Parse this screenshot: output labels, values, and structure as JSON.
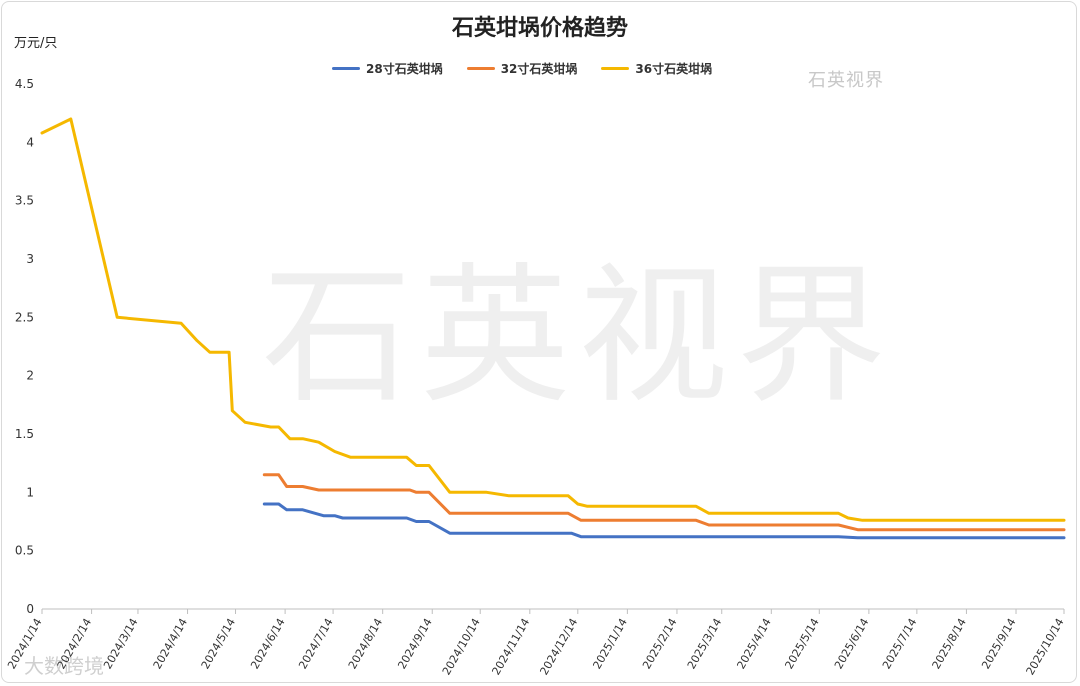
{
  "chart_data": {
    "type": "line",
    "title": "石英坩埚价格趋势",
    "ylabel": "万元/只",
    "ylim": [
      0,
      4.5
    ],
    "yticks": [
      "0",
      "0.5",
      "1",
      "1.5",
      "2",
      "2.5",
      "3",
      "3.5",
      "4",
      "4.5"
    ],
    "x_tick_labels": [
      "2024/1/14",
      "2024/2/14",
      "2024/3/14",
      "2024/4/14",
      "2024/5/14",
      "2024/6/14",
      "2024/7/14",
      "2024/8/14",
      "2024/9/14",
      "2024/10/14",
      "2024/11/14",
      "2024/12/14",
      "2025/1/14",
      "2025/2/14",
      "2025/3/14",
      "2025/4/14",
      "2025/5/14",
      "2025/6/14",
      "2025/7/14",
      "2025/8/14",
      "2025/9/14",
      "2025/10/14"
    ],
    "x_range": [
      "2024-01-14",
      "2025-10-14"
    ],
    "grid": false,
    "legend_position": "top-center",
    "series": [
      {
        "name": "28寸石英坩埚",
        "color": "#4472C4",
        "points": [
          [
            "2024-06-01",
            0.9
          ],
          [
            "2024-06-10",
            0.9
          ],
          [
            "2024-06-15",
            0.85
          ],
          [
            "2024-06-25",
            0.85
          ],
          [
            "2024-07-08",
            0.8
          ],
          [
            "2024-07-15",
            0.8
          ],
          [
            "2024-07-20",
            0.78
          ],
          [
            "2024-08-29",
            0.78
          ],
          [
            "2024-09-04",
            0.75
          ],
          [
            "2024-09-12",
            0.75
          ],
          [
            "2024-09-25",
            0.65
          ],
          [
            "2024-12-10",
            0.65
          ],
          [
            "2024-12-16",
            0.62
          ],
          [
            "2025-05-26",
            0.62
          ],
          [
            "2025-06-07",
            0.61
          ],
          [
            "2025-10-14",
            0.61
          ]
        ]
      },
      {
        "name": "32寸石英坩埚",
        "color": "#ED7D31",
        "points": [
          [
            "2024-06-01",
            1.15
          ],
          [
            "2024-06-10",
            1.15
          ],
          [
            "2024-06-15",
            1.05
          ],
          [
            "2024-06-25",
            1.05
          ],
          [
            "2024-07-05",
            1.02
          ],
          [
            "2024-08-31",
            1.02
          ],
          [
            "2024-09-04",
            1.0
          ],
          [
            "2024-09-12",
            1.0
          ],
          [
            "2024-09-25",
            0.82
          ],
          [
            "2024-12-08",
            0.82
          ],
          [
            "2024-12-16",
            0.76
          ],
          [
            "2025-02-26",
            0.76
          ],
          [
            "2025-03-06",
            0.72
          ],
          [
            "2025-05-26",
            0.72
          ],
          [
            "2025-06-07",
            0.68
          ],
          [
            "2025-10-14",
            0.68
          ]
        ]
      },
      {
        "name": "36寸石英坩埚",
        "color": "#F5B800",
        "points": [
          [
            "2024-01-14",
            4.08
          ],
          [
            "2024-02-01",
            4.2
          ],
          [
            "2024-03-01",
            2.5
          ],
          [
            "2024-04-10",
            2.45
          ],
          [
            "2024-04-20",
            2.3
          ],
          [
            "2024-04-28",
            2.2
          ],
          [
            "2024-05-10",
            2.2
          ],
          [
            "2024-05-12",
            1.7
          ],
          [
            "2024-05-20",
            1.6
          ],
          [
            "2024-06-05",
            1.56
          ],
          [
            "2024-06-10",
            1.56
          ],
          [
            "2024-06-17",
            1.46
          ],
          [
            "2024-06-25",
            1.46
          ],
          [
            "2024-07-05",
            1.43
          ],
          [
            "2024-07-15",
            1.35
          ],
          [
            "2024-07-25",
            1.3
          ],
          [
            "2024-08-29",
            1.3
          ],
          [
            "2024-09-04",
            1.23
          ],
          [
            "2024-09-12",
            1.23
          ],
          [
            "2024-09-25",
            1.0
          ],
          [
            "2024-10-18",
            1.0
          ],
          [
            "2024-11-01",
            0.97
          ],
          [
            "2024-12-08",
            0.97
          ],
          [
            "2024-12-14",
            0.9
          ],
          [
            "2024-12-20",
            0.88
          ],
          [
            "2025-02-26",
            0.88
          ],
          [
            "2025-03-06",
            0.82
          ],
          [
            "2025-05-26",
            0.82
          ],
          [
            "2025-06-01",
            0.78
          ],
          [
            "2025-06-10",
            0.76
          ],
          [
            "2025-10-14",
            0.76
          ]
        ]
      }
    ]
  },
  "watermarks": {
    "corner": "石英视界",
    "center": "石英视界",
    "bottom": "大数跨境"
  }
}
